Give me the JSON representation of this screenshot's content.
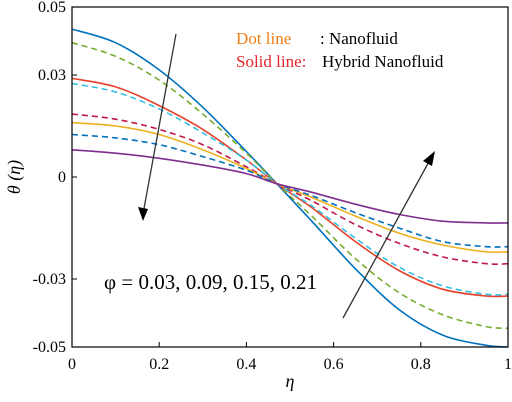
{
  "chart_data": {
    "type": "line",
    "xlabel": "η",
    "ylabel": "θ (η)",
    "xlim": [
      0,
      1
    ],
    "ylim": [
      -0.05,
      0.05
    ],
    "xticks": [
      "0",
      "0.2",
      "0.4",
      "0.6",
      "0.8",
      "1"
    ],
    "yticks": [
      "0.05",
      "0.03",
      "0",
      "-0.03",
      "-0.05"
    ],
    "ytick_values": [
      0.05,
      0.03,
      0,
      -0.03,
      -0.05
    ],
    "grid": false,
    "legend": {
      "dot_label": "Dot line",
      "dot_desc": ": Nanofluid",
      "solid_label": "Solid line:",
      "solid_desc": "Hybrid Nanofluid",
      "dot_color": "#F07F1A",
      "solid_color": "#E8262B"
    },
    "annotation": "φ = 0.03, 0.09, 0.15, 0.21",
    "x": [
      0,
      0.1,
      0.2,
      0.3,
      0.4,
      0.47,
      0.55,
      0.65,
      0.75,
      0.85,
      0.95,
      1.0
    ],
    "series": [
      {
        "style": "solid",
        "color": "#0072BD",
        "values": [
          0.0435,
          0.0395,
          0.0315,
          0.0205,
          0.0075,
          -0.002,
          -0.013,
          -0.027,
          -0.039,
          -0.0465,
          -0.0495,
          -0.05
        ]
      },
      {
        "style": "dashed",
        "color": "#77AC30",
        "values": [
          0.0395,
          0.0355,
          0.0285,
          0.0185,
          0.007,
          -0.002,
          -0.0115,
          -0.024,
          -0.034,
          -0.0405,
          -0.044,
          -0.0445
        ]
      },
      {
        "style": "solid",
        "color": "#E8412B",
        "values": [
          0.029,
          0.0265,
          0.021,
          0.014,
          0.005,
          -0.002,
          -0.009,
          -0.019,
          -0.0275,
          -0.033,
          -0.035,
          -0.035
        ]
      },
      {
        "style": "dashed",
        "color": "#33C0E0",
        "values": [
          0.0275,
          0.025,
          0.02,
          0.013,
          0.005,
          -0.002,
          -0.0085,
          -0.018,
          -0.0265,
          -0.032,
          -0.0345,
          -0.0345
        ]
      },
      {
        "style": "dashed",
        "color": "#C0174F",
        "values": [
          0.0185,
          0.017,
          0.014,
          0.0095,
          0.003,
          -0.002,
          -0.007,
          -0.014,
          -0.0195,
          -0.0235,
          -0.0255,
          -0.0255
        ]
      },
      {
        "style": "solid",
        "color": "#EDB120",
        "values": [
          0.016,
          0.015,
          0.0125,
          0.008,
          0.0025,
          -0.002,
          -0.006,
          -0.0115,
          -0.0165,
          -0.02,
          -0.022,
          -0.022
        ]
      },
      {
        "style": "dashed",
        "color": "#0072BD",
        "values": [
          0.0125,
          0.0115,
          0.0095,
          0.006,
          0.002,
          -0.002,
          -0.0055,
          -0.0105,
          -0.015,
          -0.019,
          -0.0205,
          -0.0205
        ]
      },
      {
        "style": "solid",
        "color": "#7E2F8E",
        "values": [
          0.008,
          0.007,
          0.0055,
          0.0035,
          0.001,
          -0.002,
          -0.0045,
          -0.008,
          -0.011,
          -0.013,
          -0.0135,
          -0.0135
        ]
      }
    ]
  }
}
